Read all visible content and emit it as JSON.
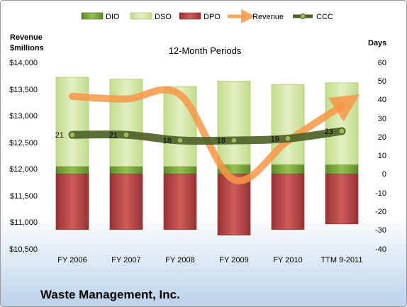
{
  "chart_data": {
    "type": "bar",
    "title": "12-Month Periods",
    "footer": "Waste Management, Inc.",
    "categories": [
      "FY 2006",
      "FY 2007",
      "FY 2008",
      "FY 2009",
      "FY 2010",
      "TTM 9-2011"
    ],
    "left_axis": {
      "title_line1": "Revenue",
      "title_line2": "$millions",
      "range": [
        10500,
        14000
      ],
      "ticks": [
        "$14,000",
        "$13,500",
        "$13,000",
        "$12,500",
        "$12,000",
        "$11,500",
        "$11,000",
        "$10,500"
      ]
    },
    "right_axis": {
      "title": "Days",
      "range": [
        -40,
        60
      ],
      "ticks": [
        "60",
        "50",
        "40",
        "30",
        "20",
        "10",
        "0",
        "-10",
        "-20",
        "-30",
        "-40"
      ]
    },
    "grid": false,
    "legend_position": "top",
    "series": [
      {
        "name": "DIO",
        "axis": "right",
        "kind": "bar",
        "color": "#77a83a",
        "values": [
          4,
          4,
          4,
          5,
          5,
          5
        ]
      },
      {
        "name": "DSO",
        "axis": "right",
        "kind": "bar",
        "color": "#d3e6a6",
        "values": [
          48,
          47,
          43,
          45,
          43,
          44
        ]
      },
      {
        "name": "DPO",
        "axis": "right",
        "kind": "bar",
        "color": "#b8494a",
        "values": [
          -30,
          -30,
          -30,
          -33,
          -30,
          -27
        ]
      },
      {
        "name": "Revenue",
        "axis": "left",
        "kind": "line",
        "color": "#f79646",
        "values": [
          13360,
          13310,
          13390,
          11790,
          12520,
          13180
        ]
      },
      {
        "name": "CCC",
        "axis": "right",
        "kind": "line",
        "color": "#4f6228",
        "values": [
          21,
          21,
          18,
          18,
          19,
          23
        ]
      }
    ],
    "data_labels": [
      "21",
      "21",
      "18",
      "18",
      "19",
      "23"
    ]
  }
}
